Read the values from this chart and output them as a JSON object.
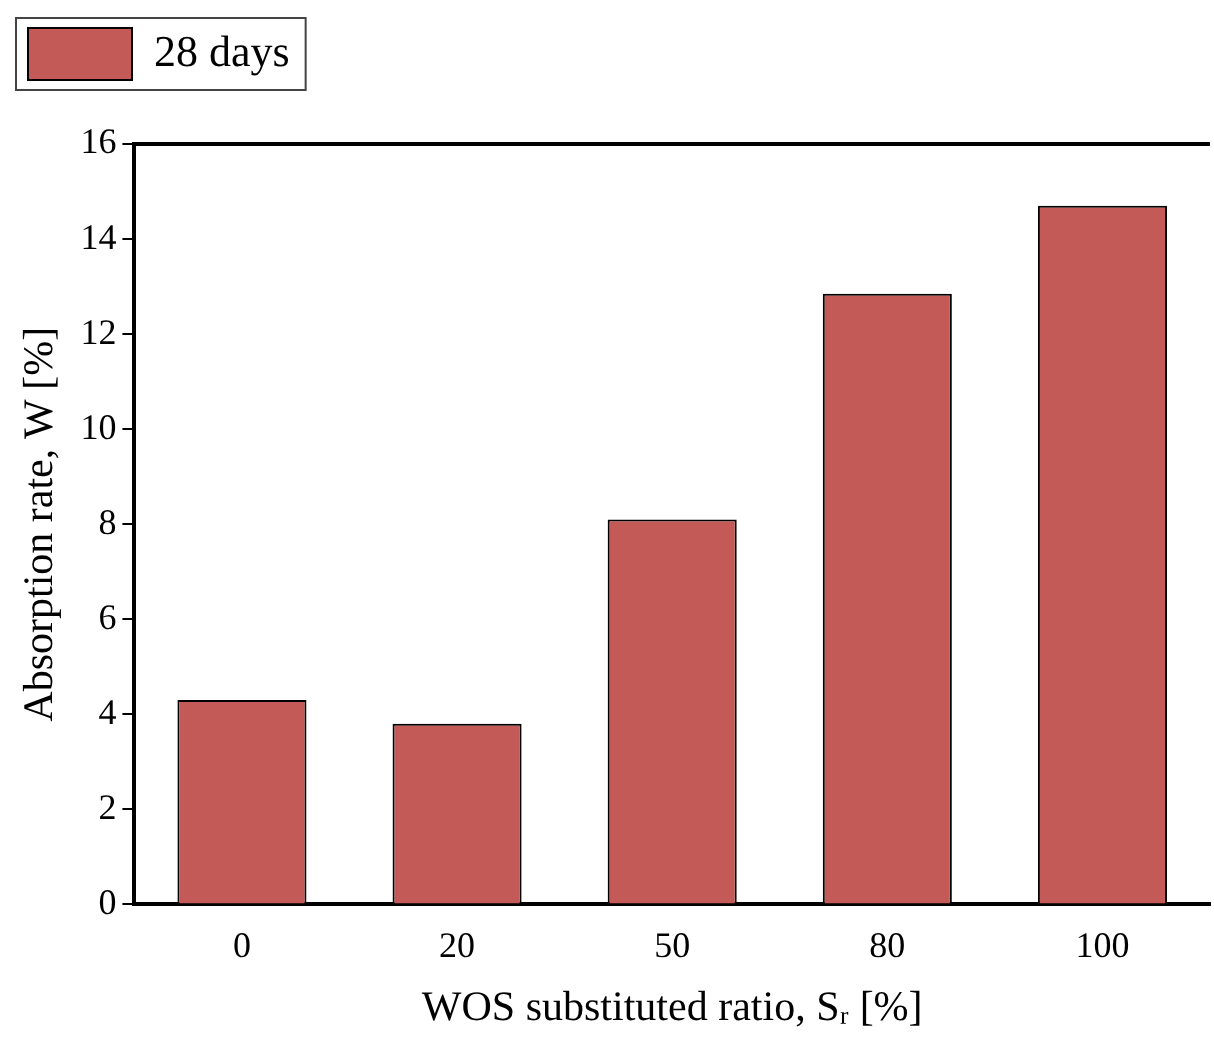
{
  "chart_data": {
    "type": "bar",
    "xlabel": "WOS substituted ratio, Sᵣ [%]",
    "ylabel": "Absorption rate, W [%]",
    "categories": [
      "0",
      "20",
      "50",
      "80",
      "100"
    ],
    "series": [
      {
        "name": "28 days",
        "color": "#c45a58",
        "values": [
          4.3,
          3.8,
          8.1,
          12.85,
          14.7
        ]
      }
    ],
    "ylim": [
      0,
      16
    ],
    "yticks": [
      0,
      2,
      4,
      6,
      8,
      10,
      12,
      14,
      16
    ],
    "grid": false,
    "legend": "top left"
  }
}
